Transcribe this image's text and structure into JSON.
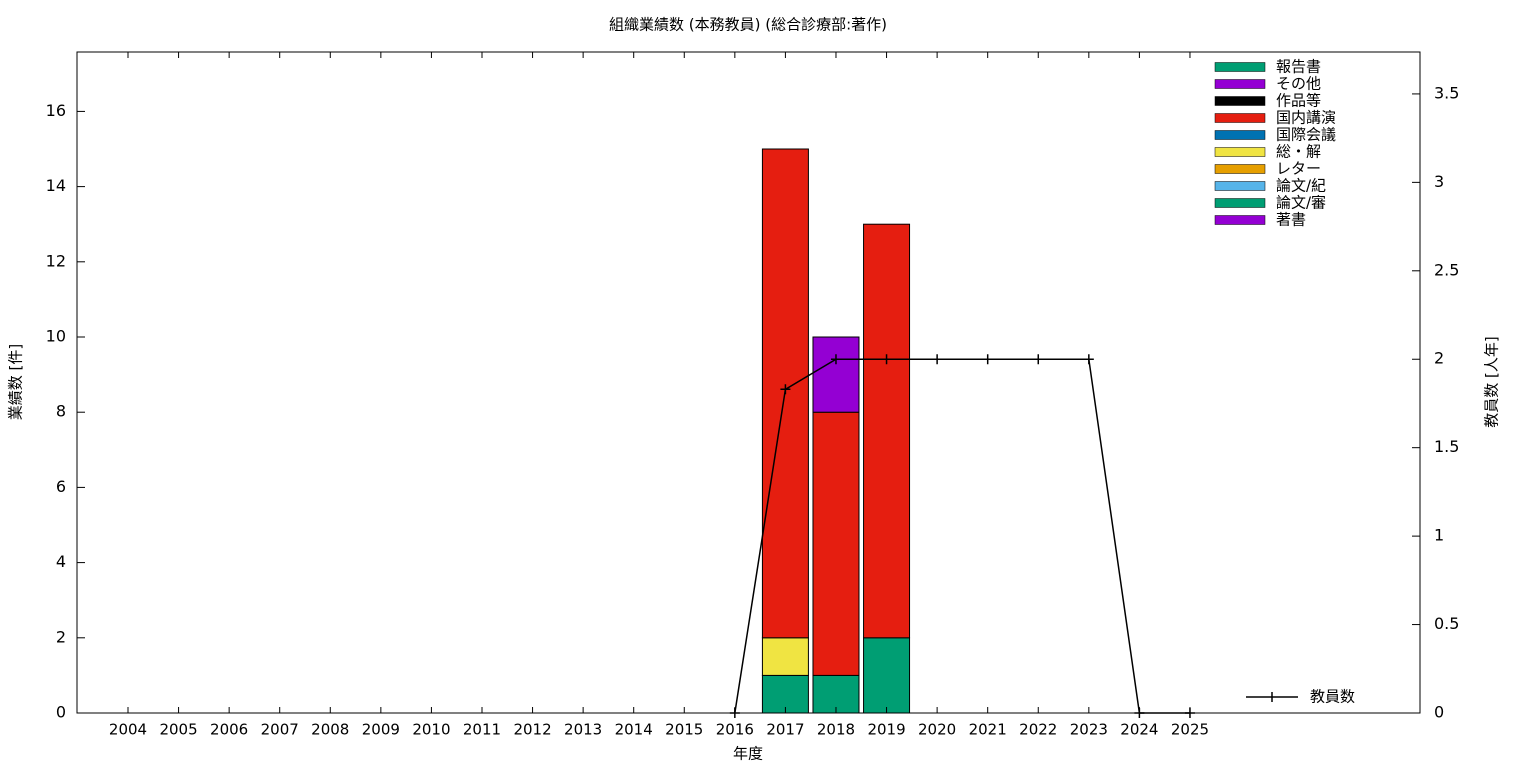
{
  "chart_data": {
    "type": "bar",
    "stacked": true,
    "title": "組織業績数 (本務教員) (総合診療部:著作)",
    "xlabel": "年度",
    "ylabel": "業績数 [件]",
    "y2label": "教員数 [人年]",
    "categories": [
      "2004",
      "2005",
      "2006",
      "2007",
      "2008",
      "2009",
      "2010",
      "2011",
      "2012",
      "2013",
      "2014",
      "2015",
      "2016",
      "2017",
      "2018",
      "2019",
      "2020",
      "2021",
      "2022",
      "2023",
      "2024",
      "2025"
    ],
    "series": [
      {
        "name": "報告書",
        "color": "#009e73",
        "values": [
          0,
          0,
          0,
          0,
          0,
          0,
          0,
          0,
          0,
          0,
          0,
          0,
          0,
          0,
          0,
          0,
          0,
          0,
          0,
          0,
          0,
          0
        ]
      },
      {
        "name": "その他",
        "color": "#9400d3",
        "values": [
          0,
          0,
          0,
          0,
          0,
          0,
          0,
          0,
          0,
          0,
          0,
          0,
          0,
          0,
          2,
          0,
          0,
          0,
          0,
          0,
          0,
          0
        ]
      },
      {
        "name": "作品等",
        "color": "#000000",
        "values": [
          0,
          0,
          0,
          0,
          0,
          0,
          0,
          0,
          0,
          0,
          0,
          0,
          0,
          0,
          0,
          0,
          0,
          0,
          0,
          0,
          0,
          0
        ]
      },
      {
        "name": "国内講演",
        "color": "#e51e10",
        "values": [
          0,
          0,
          0,
          0,
          0,
          0,
          0,
          0,
          0,
          0,
          0,
          0,
          0,
          13,
          7,
          11,
          0,
          0,
          0,
          0,
          0,
          0
        ]
      },
      {
        "name": "国際会議",
        "color": "#0072b2",
        "values": [
          0,
          0,
          0,
          0,
          0,
          0,
          0,
          0,
          0,
          0,
          0,
          0,
          0,
          0,
          0,
          0,
          0,
          0,
          0,
          0,
          0,
          0
        ]
      },
      {
        "name": "総・解",
        "color": "#f0e442",
        "values": [
          0,
          0,
          0,
          0,
          0,
          0,
          0,
          0,
          0,
          0,
          0,
          0,
          0,
          1,
          0,
          0,
          0,
          0,
          0,
          0,
          0,
          0
        ]
      },
      {
        "name": "レター",
        "color": "#e69f00",
        "values": [
          0,
          0,
          0,
          0,
          0,
          0,
          0,
          0,
          0,
          0,
          0,
          0,
          0,
          0,
          0,
          0,
          0,
          0,
          0,
          0,
          0,
          0
        ]
      },
      {
        "name": "論文/紀",
        "color": "#56b4e9",
        "values": [
          0,
          0,
          0,
          0,
          0,
          0,
          0,
          0,
          0,
          0,
          0,
          0,
          0,
          0,
          0,
          0,
          0,
          0,
          0,
          0,
          0,
          0
        ]
      },
      {
        "name": "論文/審",
        "color": "#009e73",
        "values": [
          0,
          0,
          0,
          0,
          0,
          0,
          0,
          0,
          0,
          0,
          0,
          0,
          0,
          1,
          1,
          2,
          0,
          0,
          0,
          0,
          0,
          0
        ]
      },
      {
        "name": "著書",
        "color": "#9400d3",
        "values": [
          0,
          0,
          0,
          0,
          0,
          0,
          0,
          0,
          0,
          0,
          0,
          0,
          0,
          0,
          0,
          0,
          0,
          0,
          0,
          0,
          0,
          0
        ]
      },
      {
        "name": "教員数",
        "type": "line",
        "axis": "y2",
        "color": "#000000",
        "values": [
          null,
          null,
          null,
          null,
          null,
          null,
          null,
          null,
          null,
          null,
          null,
          null,
          0,
          1.83,
          2,
          2,
          2,
          2,
          2,
          2,
          0,
          0
        ]
      }
    ],
    "ylim": [
      0,
      17.58
    ],
    "yticks": [
      0,
      2,
      4,
      6,
      8,
      10,
      12,
      14,
      16
    ],
    "y2lim": [
      0,
      3.737
    ],
    "y2ticks": [
      0,
      0.5,
      1,
      1.5,
      2,
      2.5,
      3,
      3.5
    ]
  }
}
